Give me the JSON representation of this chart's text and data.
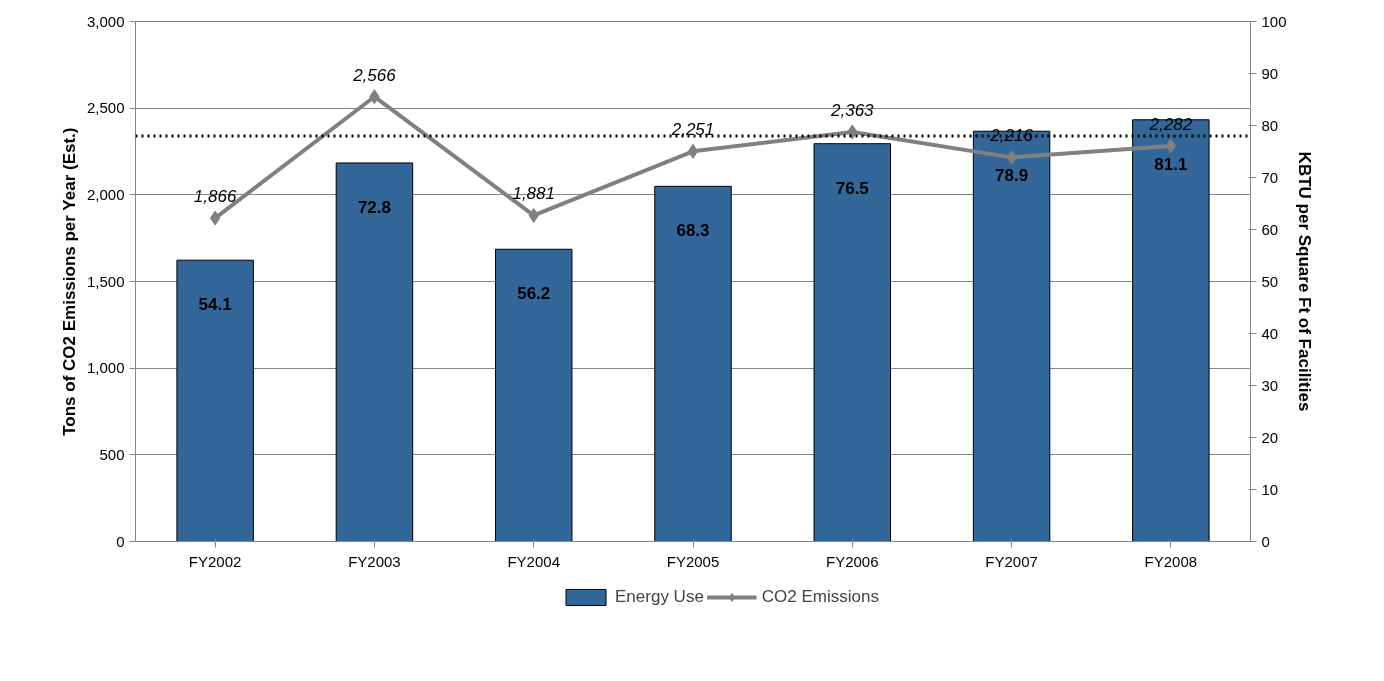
{
  "chart_data": {
    "type": "bar",
    "categories": [
      "FY2002",
      "FY2003",
      "FY2004",
      "FY2005",
      "FY2006",
      "FY2007",
      "FY2008"
    ],
    "series": [
      {
        "name": "Energy Use",
        "axis": "y2",
        "color": "#336699",
        "values": [
          54.1,
          72.8,
          56.2,
          68.3,
          76.5,
          78.9,
          81.1
        ],
        "value_labels": [
          "54.1",
          "72.8",
          "56.2",
          "68.3",
          "76.5",
          "78.9",
          "81.1"
        ]
      },
      {
        "name": "CO2 Emissions",
        "type": "line",
        "color": "#808080",
        "marker": "diamond",
        "values": [
          1866,
          2566,
          1881,
          2251,
          2363,
          2216,
          2282
        ],
        "value_labels": [
          "1,866",
          "2,566",
          "1,881",
          "2,251",
          "2,363",
          "2,216",
          "2,282"
        ]
      }
    ],
    "ylabel": "Tons of CO2 Emissions per Year (Est.)",
    "y2label": "KBTU per Square Ft of Facilities",
    "ylim": [
      0,
      3000
    ],
    "yticks": [
      0,
      500,
      {
        "value": 1000,
        "label": "1,000"
      },
      {
        "value": 1500,
        "label": "1,500"
      },
      {
        "value": 2000,
        "label": "2,000"
      },
      {
        "value": 2500,
        "label": "2,500"
      },
      {
        "value": 3000,
        "label": "3,000"
      }
    ],
    "y2lim": [
      0,
      100
    ],
    "y2ticks": [
      0,
      10,
      20,
      30,
      40,
      50,
      60,
      70,
      80,
      90,
      100
    ],
    "ref_lines": [
      {
        "axis": "y2",
        "value": 78,
        "color": "#000000",
        "line_style": "dotted"
      }
    ],
    "grid": "y",
    "legend": "bottom"
  }
}
